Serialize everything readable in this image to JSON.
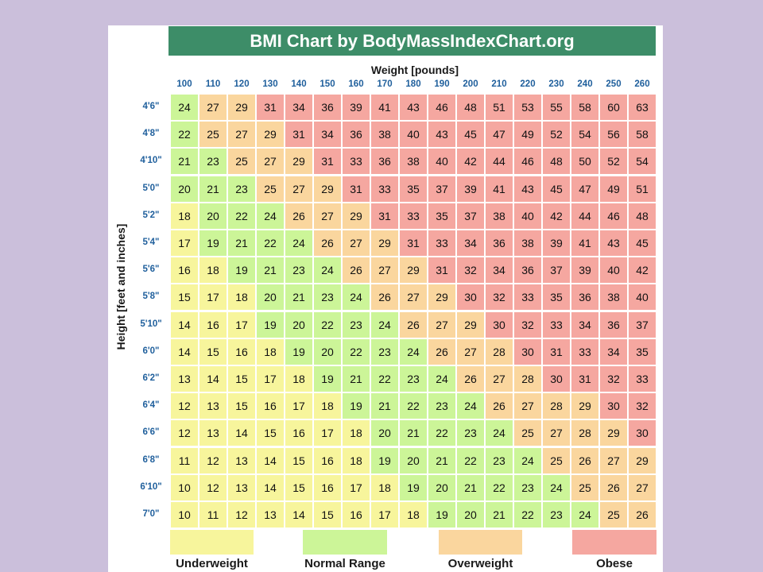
{
  "title": "BMI Chart by BodyMassIndexChart.org",
  "chart_data": {
    "type": "heatmap",
    "title": "BMI Chart by BodyMassIndexChart.org",
    "xlabel": "Weight [pounds]",
    "ylabel": "Height [feet and inches]",
    "x": [
      "100",
      "110",
      "120",
      "130",
      "140",
      "150",
      "160",
      "170",
      "180",
      "190",
      "200",
      "210",
      "220",
      "230",
      "240",
      "250",
      "260"
    ],
    "y": [
      "4'6\"",
      "4'8\"",
      "4'10\"",
      "5'0\"",
      "5'2\"",
      "5'4\"",
      "5'6\"",
      "5'8\"",
      "5'10\"",
      "6'0\"",
      "6'2\"",
      "6'4\"",
      "6'6\"",
      "6'8\"",
      "6'10\"",
      "7'0\""
    ],
    "values": [
      [
        24,
        27,
        29,
        31,
        34,
        36,
        39,
        41,
        43,
        46,
        48,
        51,
        53,
        55,
        58,
        60,
        63
      ],
      [
        22,
        25,
        27,
        29,
        31,
        34,
        36,
        38,
        40,
        43,
        45,
        47,
        49,
        52,
        54,
        56,
        58
      ],
      [
        21,
        23,
        25,
        27,
        29,
        31,
        33,
        36,
        38,
        40,
        42,
        44,
        46,
        48,
        50,
        52,
        54
      ],
      [
        20,
        21,
        23,
        25,
        27,
        29,
        31,
        33,
        35,
        37,
        39,
        41,
        43,
        45,
        47,
        49,
        51
      ],
      [
        18,
        20,
        22,
        24,
        26,
        27,
        29,
        31,
        33,
        35,
        37,
        38,
        40,
        42,
        44,
        46,
        48
      ],
      [
        17,
        19,
        21,
        22,
        24,
        26,
        27,
        29,
        31,
        33,
        34,
        36,
        38,
        39,
        41,
        43,
        45
      ],
      [
        16,
        18,
        19,
        21,
        23,
        24,
        26,
        27,
        29,
        31,
        32,
        34,
        36,
        37,
        39,
        40,
        42
      ],
      [
        15,
        17,
        18,
        20,
        21,
        23,
        24,
        26,
        27,
        29,
        30,
        32,
        33,
        35,
        36,
        38,
        40
      ],
      [
        14,
        16,
        17,
        19,
        20,
        22,
        23,
        24,
        26,
        27,
        29,
        30,
        32,
        33,
        34,
        36,
        37
      ],
      [
        14,
        15,
        16,
        18,
        19,
        20,
        22,
        23,
        24,
        26,
        27,
        28,
        30,
        31,
        33,
        34,
        35
      ],
      [
        13,
        14,
        15,
        17,
        18,
        19,
        21,
        22,
        23,
        24,
        26,
        27,
        28,
        30,
        31,
        32,
        33
      ],
      [
        12,
        13,
        15,
        16,
        17,
        18,
        19,
        21,
        22,
        23,
        24,
        26,
        27,
        28,
        29,
        30,
        32
      ],
      [
        12,
        13,
        14,
        15,
        16,
        17,
        18,
        20,
        21,
        22,
        23,
        24,
        25,
        27,
        28,
        29,
        30
      ],
      [
        11,
        12,
        13,
        14,
        15,
        16,
        18,
        19,
        20,
        21,
        22,
        23,
        24,
        25,
        26,
        27,
        29
      ],
      [
        10,
        12,
        13,
        14,
        15,
        16,
        17,
        18,
        19,
        20,
        21,
        22,
        23,
        24,
        25,
        26,
        27
      ],
      [
        10,
        11,
        12,
        13,
        14,
        15,
        16,
        17,
        18,
        19,
        20,
        21,
        22,
        23,
        24,
        25,
        26
      ]
    ],
    "categories": [
      {
        "name": "Underweight",
        "color": "#f7f59c",
        "max": 18
      },
      {
        "name": "Normal Range",
        "color": "#ccf598",
        "max": 24
      },
      {
        "name": "Overweight",
        "color": "#fad69e",
        "max": 29
      },
      {
        "name": "Obese",
        "color": "#f5a7a0",
        "max": 999
      }
    ],
    "legend": "bottom"
  },
  "colors": {
    "background": "#cbbfdb",
    "title_bar": "#3d8d68",
    "header_text": "#1f5f9c"
  }
}
